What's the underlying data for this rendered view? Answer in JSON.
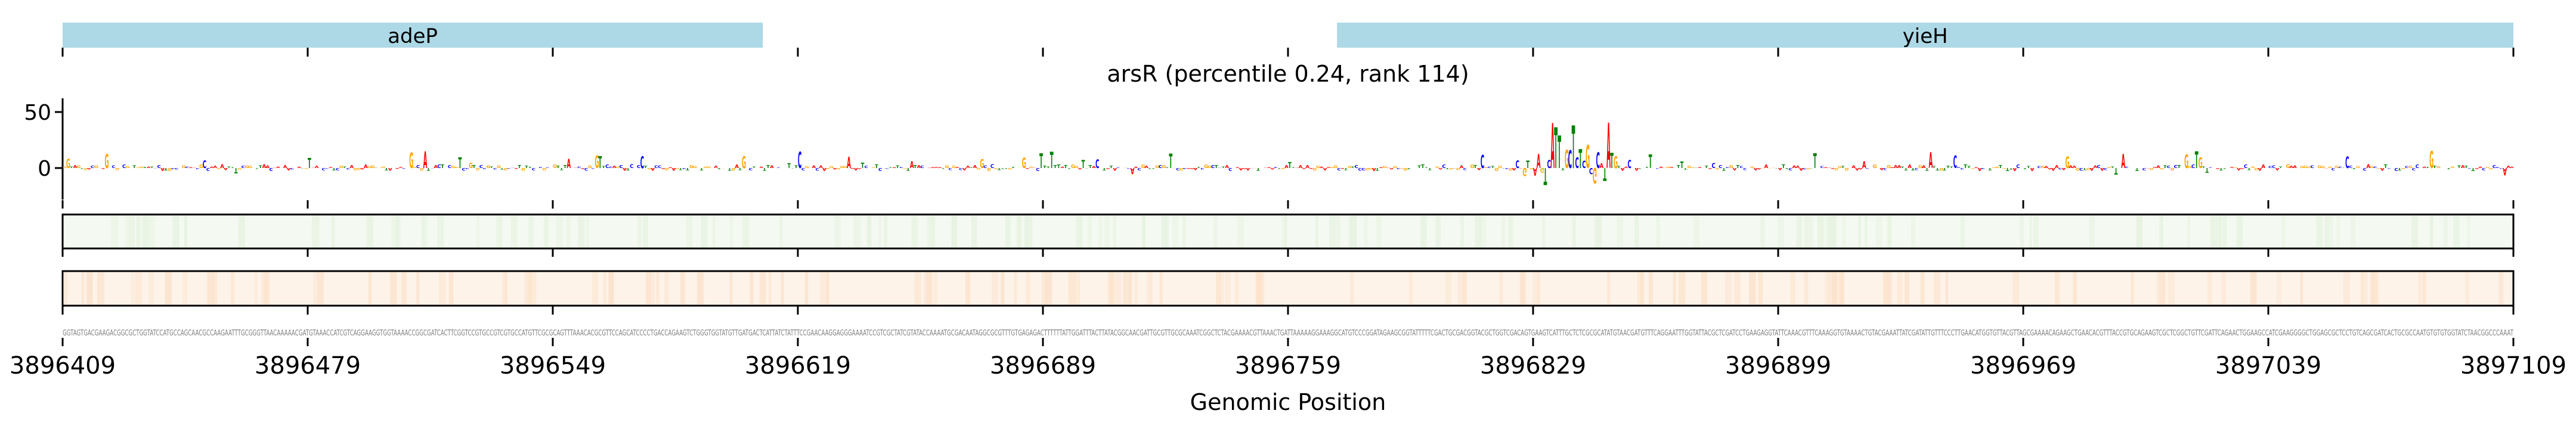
{
  "chart_data": {
    "type": "sequence-logo",
    "title": "arsR (percentile 0.24, rank 114)",
    "xlabel": "Genomic Position",
    "xlim": [
      3896409,
      3897109
    ],
    "x_ticks": [
      "3896409",
      "3896479",
      "3896549",
      "3896619",
      "3896689",
      "3896759",
      "3896829",
      "3896899",
      "3896969",
      "3897039",
      "3897109"
    ],
    "ylim": [
      -28,
      62
    ],
    "y_ticks": [
      "50",
      "0"
    ],
    "genes": [
      {
        "name": "adeP",
        "start": 3896409,
        "end": 3896609
      },
      {
        "name": "yieH",
        "start": 3896773,
        "end": 3897109
      }
    ],
    "peak_region": {
      "start": 3896826,
      "end": 3896852,
      "max_value": 60
    },
    "sequence": "GGTAGTGACGAAGACGGCGCTGGTATCCATGCCAGCAACGCCAAGAATTTGCGGGTTAACAAAAACGATGTAAACCATCGTCAGGAAGGTGGTAAAACCGGCGATCACTTCGGTCCGTGCCGTCGTGCCATGTTCGCGCAGTTTAAACACGCGTTCCAGCATCCCCTGACCAGAAGTCTGGGTGGTATGTTGATGACTCATTATCTATTTCCGAACAAGGAGGGAAAATCCGTCGCTATCGTATACCAAAATGCGACAATAGGCGCGTTTGTGAGAGACTTTTTTATTGGATTTACTTATACGGCAACGATTGCGTTGCGCAAATCGGCTCTACGAAAACGTTAAACTGATTAAAAAGGAAAGGCATGTCCCGGATAGAAGCGGTATTTTTCGACTGCGACGGTACGCTGGTCGACAGTGAAGTCATTTGCTCTCGCGCATATGTAACGATGTTTCAGGAATTTGGTATTACGCTCGATCCTGAAGAGGTATTCAAACGTTTCAAAGGTGTAAAACTGTACGAAATTATCGATATTGTTTCCCTTGAACATGGTGTTACGTTAGCGAAAACAGAAGCTGAACACGTTTACCGTGCAGAAGTCGCTCGGCTGTTCGATTCAGAACTGGAAGCCATCGAAGGGGCTGGAGCGCTCCTGTCAGCGATCACTGCGCCAATGTGTGTGGTATCTAACGGCCCAAAT",
    "colors": {
      "A": "#ff0000",
      "C": "#0000ff",
      "G": "#ffa500",
      "T": "#008000",
      "gene": "#add8e6",
      "track1": "#f4f9f1",
      "track2": "#fef3e9",
      "sequence_text": "#808080"
    }
  }
}
